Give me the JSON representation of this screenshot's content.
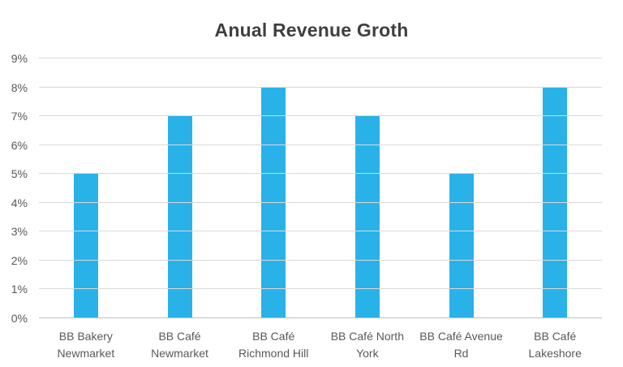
{
  "chart_data": {
    "type": "bar",
    "title": "Anual Revenue Groth",
    "categories": [
      [
        "BB Bakery",
        "Newmarket"
      ],
      [
        "BB Café",
        "Newmarket"
      ],
      [
        "BB Café",
        "Richmond Hill"
      ],
      [
        "BB Café North",
        "York"
      ],
      [
        "BB Café Avenue",
        "Rd"
      ],
      [
        "BB Café",
        "Lakeshore"
      ]
    ],
    "values": [
      5,
      7,
      8,
      7,
      5,
      8
    ],
    "yticks": [
      "0%",
      "1%",
      "2%",
      "3%",
      "4%",
      "5%",
      "6%",
      "7%",
      "8%",
      "9%"
    ],
    "ylim": [
      0,
      9
    ],
    "xlabel": "",
    "ylabel": "",
    "grid": true,
    "legend": false,
    "colors": {
      "bar": "#29b2e8",
      "title": "#3f3f3f",
      "axis_text": "#595959",
      "gridline": "#d9d9d9",
      "axis_line": "#bfbfbf"
    }
  }
}
